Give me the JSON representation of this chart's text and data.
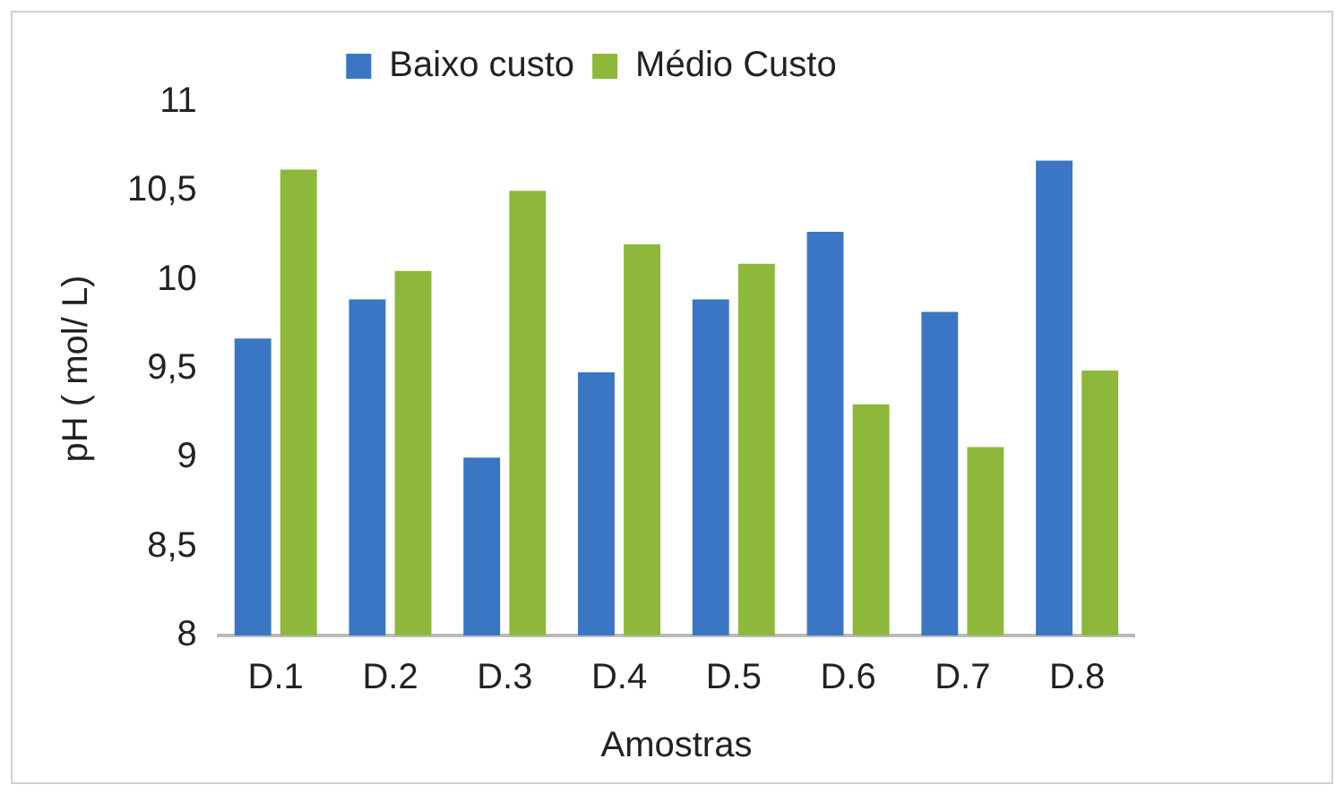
{
  "chart_data": {
    "type": "bar",
    "xlabel": "Amostras",
    "ylabel": "pH ( mol/ L)",
    "categories": [
      "D.1",
      "D.2",
      "D.3",
      "D.4",
      "D.5",
      "D.6",
      "D.7",
      "D.8"
    ],
    "series": [
      {
        "name": "Baixo custo",
        "color": "#3a76c4",
        "values": [
          9.67,
          9.89,
          9.0,
          9.48,
          9.89,
          10.27,
          9.82,
          10.67
        ]
      },
      {
        "name": "Médio Custo",
        "color": "#8db83a",
        "values": [
          10.62,
          10.05,
          10.5,
          10.2,
          10.09,
          9.3,
          9.06,
          9.49
        ]
      }
    ],
    "ylim": [
      8,
      11
    ],
    "yticks": [
      8,
      {
        "value": 8.5,
        "label": "8,5"
      },
      9,
      {
        "value": 9.5,
        "label": "9,5"
      },
      10,
      {
        "value": 10.5,
        "label": "10,5"
      },
      11
    ],
    "grid": false,
    "legend": "top"
  }
}
